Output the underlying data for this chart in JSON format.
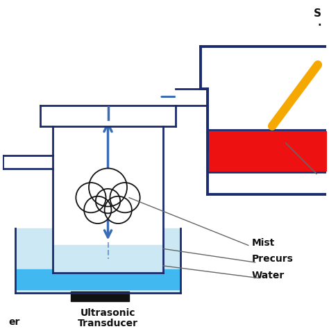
{
  "bg_color": "#ffffff",
  "dark_blue": "#1a2a6e",
  "blue_arrow": "#3a6db5",
  "light_blue_water": "#41b8f0",
  "light_blue_fill": "#cce8f4",
  "red_heater": "#ee1111",
  "yellow_heater": "#f5a800",
  "black": "#111111",
  "gray": "#666666",
  "label_ultrasonic": "Ultrasonic\nTransducer",
  "label_carrier": "er",
  "label_mist": "Mist",
  "label_precursor": "Precurs",
  "label_water": "Water",
  "lw_main": 2.0,
  "lw_thick": 2.8
}
